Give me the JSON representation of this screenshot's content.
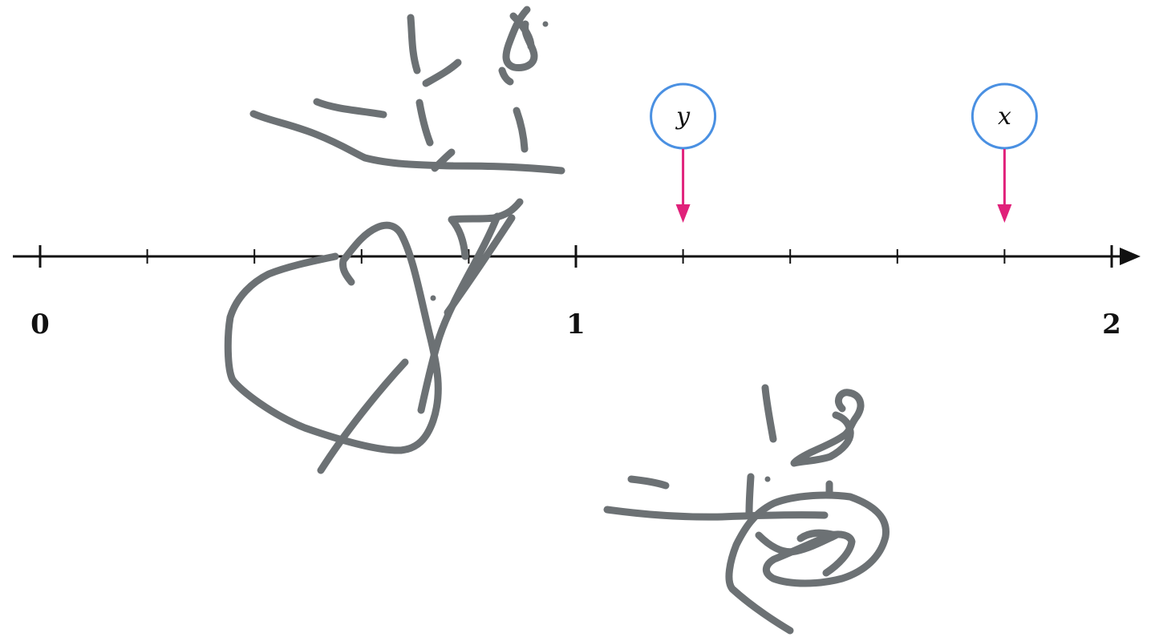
{
  "number_line": {
    "min": 0,
    "max": 2,
    "divisions_per_unit": 5,
    "labels": [
      {
        "value": 0,
        "text": "0"
      },
      {
        "value": 1,
        "text": "1"
      },
      {
        "value": 2,
        "text": "2"
      }
    ],
    "axis_color": "#111111"
  },
  "markers": [
    {
      "id": "marker-y",
      "label": "y",
      "value": 1.2,
      "circle_color": "#4a90e2",
      "arrow_color": "#e0217a"
    },
    {
      "id": "marker-x",
      "label": "x",
      "value": 1.8,
      "circle_color": "#4a90e2",
      "arrow_color": "#e0217a"
    }
  ],
  "annotations": {
    "ink_color": "#6c7174",
    "description_sketches": [
      "handwritten-fraction-top",
      "handwritten-y-scribble",
      "handwritten-fraction-bottom"
    ]
  }
}
